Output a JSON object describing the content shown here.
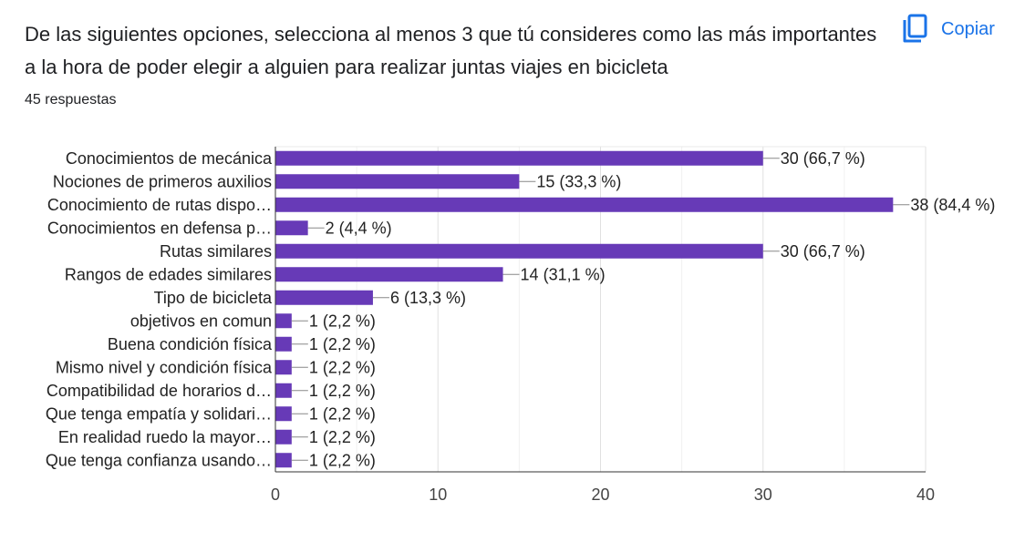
{
  "question": {
    "title": "De las siguientes opciones, selecciona al menos 3 que tú consideres como las más importantes a la hora de poder elegir a alguien para realizar juntas viajes en bicicleta",
    "responses": "45 respuestas"
  },
  "toolbar": {
    "copy_label": "Copiar",
    "copy_icon": "copy-icon"
  },
  "colors": {
    "bar": "#673ab7",
    "accent": "#1a73e8"
  },
  "chart_data": {
    "type": "bar",
    "orientation": "horizontal",
    "categories": [
      "Conocimientos de mecánica",
      "Nociones de primeros auxilios",
      "Conocimiento de rutas dispo…",
      "Conocimientos en defensa p…",
      "Rutas similares",
      "Rangos de edades similares",
      "Tipo de bicicleta",
      "objetivos en comun",
      "Buena condición física",
      "Mismo nivel y condición física",
      "Compatibilidad de horarios d…",
      "Que tenga empatía y solidari…",
      "En realidad ruedo la mayor…",
      "Que tenga confianza usando…"
    ],
    "values": [
      30,
      15,
      38,
      2,
      30,
      14,
      6,
      1,
      1,
      1,
      1,
      1,
      1,
      1
    ],
    "value_labels": [
      "30 (66,7 %)",
      "15 (33,3 %)",
      "38 (84,4 %)",
      "2 (4,4 %)",
      "30 (66,7 %)",
      "14 (31,1 %)",
      "6 (13,3 %)",
      "1 (2,2 %)",
      "1 (2,2 %)",
      "1 (2,2 %)",
      "1 (2,2 %)",
      "1 (2,2 %)",
      "1 (2,2 %)",
      "1 (2,2 %)"
    ],
    "xlim": [
      0,
      40
    ],
    "xticks": [
      "0",
      "10",
      "20",
      "30",
      "40"
    ],
    "grid": true
  }
}
